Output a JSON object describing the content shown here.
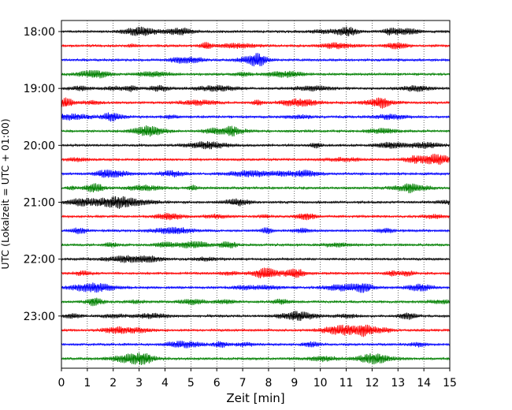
{
  "chart_data": {
    "type": "line",
    "title": "",
    "xlabel": "Zeit  [min]",
    "ylabel": "UTC (Lokalzeit = UTC + 01:00)",
    "xlim": [
      0,
      15
    ],
    "x_ticks": [
      "0",
      "1",
      "2",
      "3",
      "4",
      "5",
      "6",
      "7",
      "8",
      "9",
      "10",
      "11",
      "12",
      "13",
      "14",
      "15"
    ],
    "y_tick_labels": [
      {
        "label": "18:00",
        "trace": 0
      },
      {
        "label": "19:00",
        "trace": 4
      },
      {
        "label": "20:00",
        "trace": 8
      },
      {
        "label": "21:00",
        "trace": 12
      },
      {
        "label": "22:00",
        "trace": 16
      },
      {
        "label": "23:00",
        "trace": 20
      }
    ],
    "grid": "vertical-dotted",
    "legend": "none",
    "trace_interval_min": 15,
    "trace_colors": [
      "#000000",
      "#ff0000",
      "#0000ff",
      "#008000"
    ],
    "traces": [
      {
        "start": "18:00",
        "color": "#000000"
      },
      {
        "start": "18:15",
        "color": "#ff0000"
      },
      {
        "start": "18:30",
        "color": "#0000ff"
      },
      {
        "start": "18:45",
        "color": "#008000"
      },
      {
        "start": "19:00",
        "color": "#000000"
      },
      {
        "start": "19:15",
        "color": "#ff0000"
      },
      {
        "start": "19:30",
        "color": "#0000ff"
      },
      {
        "start": "19:45",
        "color": "#008000"
      },
      {
        "start": "20:00",
        "color": "#000000"
      },
      {
        "start": "20:15",
        "color": "#ff0000"
      },
      {
        "start": "20:30",
        "color": "#0000ff"
      },
      {
        "start": "20:45",
        "color": "#008000"
      },
      {
        "start": "21:00",
        "color": "#000000"
      },
      {
        "start": "21:15",
        "color": "#ff0000"
      },
      {
        "start": "21:30",
        "color": "#0000ff"
      },
      {
        "start": "21:45",
        "color": "#008000"
      },
      {
        "start": "22:00",
        "color": "#000000"
      },
      {
        "start": "22:15",
        "color": "#ff0000"
      },
      {
        "start": "22:30",
        "color": "#0000ff"
      },
      {
        "start": "22:45",
        "color": "#008000"
      },
      {
        "start": "23:00",
        "color": "#000000"
      },
      {
        "start": "23:15",
        "color": "#ff0000"
      },
      {
        "start": "23:30",
        "color": "#0000ff"
      },
      {
        "start": "23:45",
        "color": "#008000"
      }
    ]
  }
}
